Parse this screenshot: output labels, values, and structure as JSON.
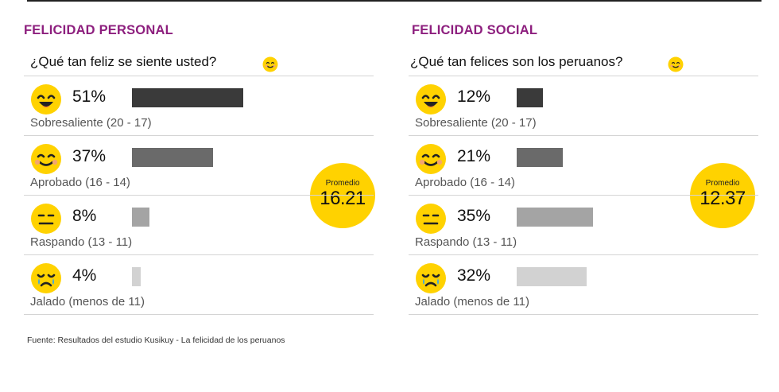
{
  "colors": {
    "title": "#8d1f7e",
    "face": "#ffd200",
    "bar_levels": [
      "#3a3a3a",
      "#6a6a6a",
      "#a4a4a4",
      "#d2d2d2"
    ]
  },
  "icons": [
    "happy-face-icon",
    "smiling-face-icon",
    "neutral-face-icon",
    "crying-face-icon"
  ],
  "chart_data": [
    {
      "type": "bar",
      "title": "FELICIDAD PERSONAL",
      "subtitle": "¿Qué tan feliz se siente usted?",
      "categories": [
        "Sobresaliente (20 - 17)",
        "Aprobado (16 - 14)",
        "Raspando (13 - 11)",
        "Jalado (menos de 11)"
      ],
      "values": [
        51,
        37,
        8,
        4
      ],
      "value_labels": [
        "51%",
        "37%",
        "8%",
        "4%"
      ],
      "unit": "%",
      "average_label": "Promedio",
      "average": "16.21"
    },
    {
      "type": "bar",
      "title": "FELICIDAD SOCIAL",
      "subtitle": "¿Qué tan felices son los peruanos?",
      "categories": [
        "Sobresaliente (20 - 17)",
        "Aprobado (16 - 14)",
        "Raspando (13 - 11)",
        "Jalado (menos de 11)"
      ],
      "values": [
        12,
        21,
        35,
        32
      ],
      "value_labels": [
        "12%",
        "21%",
        "35%",
        "32%"
      ],
      "unit": "%",
      "average_label": "Promedio",
      "average": "12.37"
    }
  ],
  "footer": {
    "source": "Fuente: Resultados del estudio Kusikuy - La felicidad de los peruanos"
  }
}
